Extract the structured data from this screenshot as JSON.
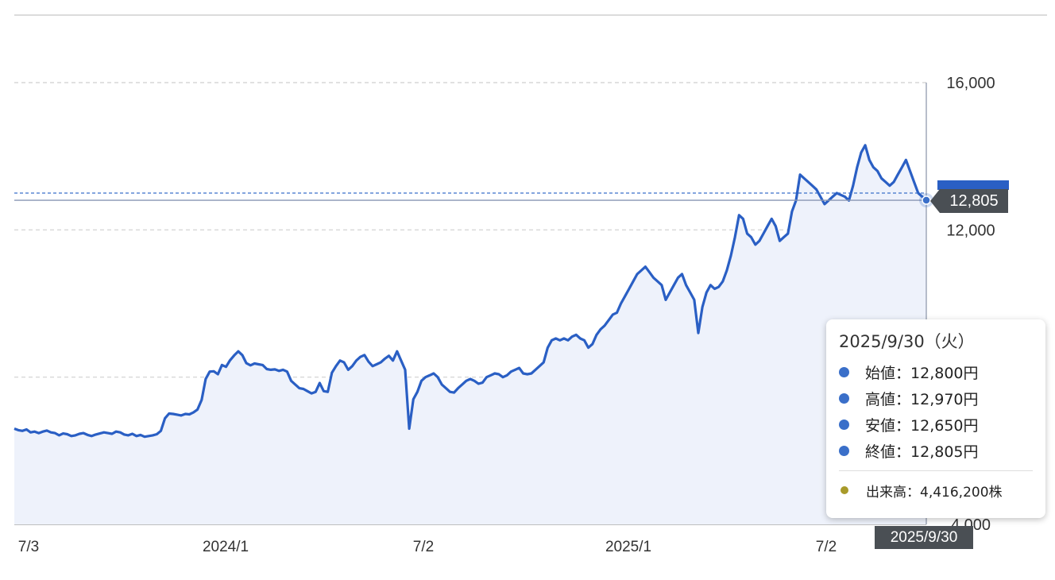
{
  "chart_data": {
    "type": "area",
    "x_tick_labels": [
      "7/3",
      "2024/1",
      "7/2",
      "2025/1",
      "7/2"
    ],
    "y_tick_labels": [
      "16,000",
      "12,000",
      "4,000"
    ],
    "ylim": [
      4000,
      16000
    ],
    "grid": true,
    "series_color": "#2a5fc4",
    "fill_color": "#eef2fb",
    "values": [
      6600,
      6560,
      6540,
      6580,
      6500,
      6520,
      6480,
      6520,
      6550,
      6500,
      6480,
      6420,
      6470,
      6450,
      6400,
      6420,
      6460,
      6480,
      6430,
      6400,
      6440,
      6470,
      6500,
      6480,
      6460,
      6520,
      6500,
      6440,
      6420,
      6460,
      6400,
      6430,
      6380,
      6400,
      6420,
      6450,
      6540,
      6880,
      7010,
      7000,
      6980,
      6960,
      7000,
      6990,
      7040,
      7120,
      7380,
      7950,
      8150,
      8160,
      8080,
      8330,
      8280,
      8460,
      8590,
      8700,
      8600,
      8380,
      8320,
      8370,
      8350,
      8330,
      8220,
      8200,
      8210,
      8170,
      8200,
      8150,
      7900,
      7800,
      7700,
      7680,
      7620,
      7560,
      7600,
      7840,
      7620,
      7600,
      8120,
      8300,
      8450,
      8400,
      8200,
      8300,
      8450,
      8550,
      8600,
      8420,
      8300,
      8350,
      8400,
      8500,
      8580,
      8450,
      8700,
      8450,
      8200,
      6600,
      7400,
      7600,
      7900,
      8000,
      8050,
      8100,
      8000,
      7800,
      7700,
      7600,
      7580,
      7700,
      7800,
      7900,
      7950,
      7900,
      7820,
      7850,
      8000,
      8050,
      8100,
      8080,
      8000,
      8050,
      8150,
      8200,
      8250,
      8100,
      8080,
      8100,
      8200,
      8300,
      8400,
      8800,
      9000,
      9050,
      9000,
      9050,
      9000,
      9100,
      9150,
      9050,
      9000,
      8800,
      8900,
      9150,
      9300,
      9400,
      9550,
      9700,
      9750,
      10000,
      10200,
      10400,
      10600,
      10800,
      10900,
      11000,
      10850,
      10700,
      10600,
      10500,
      10100,
      10300,
      10500,
      10700,
      10800,
      10500,
      10300,
      10100,
      9200,
      9900,
      10300,
      10500,
      10400,
      10450,
      10600,
      10900,
      11300,
      11800,
      12400,
      12300,
      11900,
      11800,
      11600,
      11700,
      11900,
      12100,
      12300,
      12100,
      11700,
      11800,
      11900,
      12500,
      12800,
      13500,
      13400,
      13300,
      13200,
      13100,
      12900,
      12700,
      12800,
      12900,
      13000,
      12950,
      12900,
      12800,
      13200,
      13700,
      14100,
      14300,
      13900,
      13700,
      13600,
      13400,
      13300,
      13200,
      13300,
      13500,
      13700,
      13900,
      13600,
      13300,
      13000,
      12900,
      12805
    ]
  },
  "price_tag": "12,805",
  "date_tag": "2025/9/30",
  "tooltip": {
    "date": "2025/9/30（火）",
    "rows": [
      {
        "label": "始値",
        "value": "12,800円",
        "color": "#3a6fc9"
      },
      {
        "label": "高値",
        "value": "12,970円",
        "color": "#3a6fc9"
      },
      {
        "label": "安値",
        "value": "12,650円",
        "color": "#3a6fc9"
      },
      {
        "label": "終値",
        "value": "12,805円",
        "color": "#3a6fc9"
      }
    ],
    "volume": {
      "label": "出来高",
      "value": "4,416,200株",
      "color": "#a89a2a"
    }
  }
}
